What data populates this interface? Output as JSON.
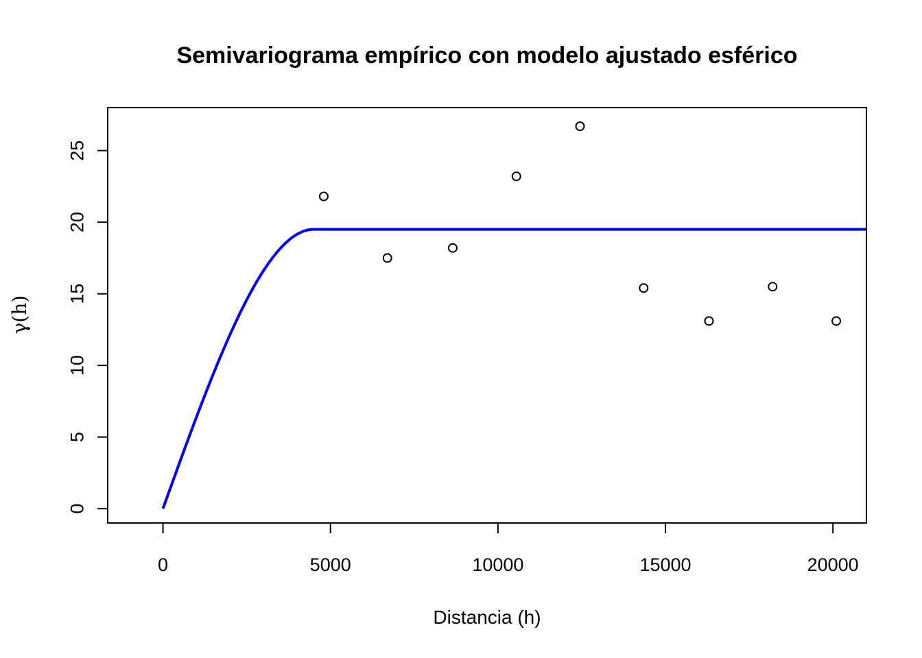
{
  "chart_data": {
    "type": "scatter",
    "title": "Semivariograma empírico con modelo ajustado esférico",
    "xlabel": "Distancia (h)",
    "ylabel": "γ(h)",
    "xlim": [
      -1650,
      21000
    ],
    "ylim": [
      -1.0,
      28.0
    ],
    "x_ticks": [
      0,
      5000,
      10000,
      15000,
      20000
    ],
    "y_ticks": [
      0,
      5,
      10,
      15,
      20,
      25
    ],
    "grid": false,
    "series": [
      {
        "kind": "points",
        "marker": "open-circle",
        "color": "#000000",
        "x": [
          4800,
          6700,
          8650,
          10550,
          12450,
          14350,
          16300,
          18200,
          20100
        ],
        "y": [
          21.8,
          17.5,
          18.2,
          23.2,
          26.7,
          15.4,
          13.1,
          15.5,
          13.1
        ]
      },
      {
        "kind": "line",
        "color": "#0000FF",
        "model": "spherical",
        "nugget": 0,
        "sill": 19.5,
        "range": 4500,
        "x_max": 21000
      }
    ]
  }
}
